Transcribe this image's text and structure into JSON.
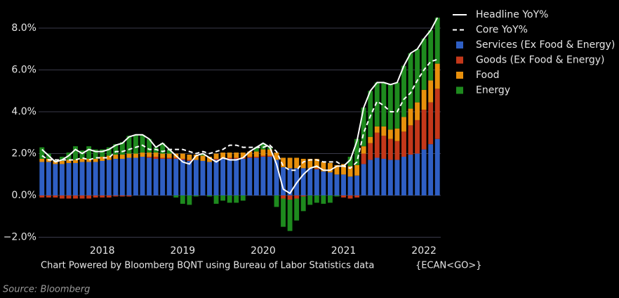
{
  "chart_data": {
    "type": "bar",
    "footer": "Chart Powered by Bloomberg BQNT using Bureau of Labor Statistics data",
    "footer_code": "{ECAN<GO>}",
    "source": "Source: Bloomberg",
    "categories": [
      null,
      null,
      null,
      null,
      null,
      null,
      null,
      null,
      null,
      "2018",
      null,
      null,
      null,
      null,
      null,
      null,
      null,
      null,
      null,
      null,
      null,
      "2019",
      null,
      null,
      null,
      null,
      null,
      null,
      null,
      null,
      null,
      null,
      null,
      "2020",
      null,
      null,
      null,
      null,
      null,
      null,
      null,
      null,
      null,
      null,
      null,
      "2021",
      null,
      null,
      null,
      null,
      null,
      null,
      null,
      null,
      null,
      null,
      null,
      "2022",
      null,
      null
    ],
    "ylim": [
      -2.25,
      9.0
    ],
    "yticks": [
      {
        "value": -2,
        "label": "−2.0%"
      },
      {
        "value": 0,
        "label": "0.0%"
      },
      {
        "value": 2,
        "label": "2.0%"
      },
      {
        "value": 4,
        "label": "4.0%"
      },
      {
        "value": 6,
        "label": "6.0%"
      },
      {
        "value": 8,
        "label": "8.0%"
      }
    ],
    "grid": true,
    "legend": "right",
    "series": [
      {
        "name": "Headline YoY%",
        "type": "line",
        "dashed": false,
        "color": "#ffffff",
        "values": [
          2.2,
          1.9,
          1.6,
          1.7,
          1.9,
          2.2,
          2.0,
          2.2,
          2.1,
          2.1,
          2.2,
          2.4,
          2.5,
          2.8,
          2.9,
          2.9,
          2.7,
          2.3,
          2.5,
          2.2,
          1.9,
          1.6,
          1.5,
          1.9,
          2.0,
          1.8,
          1.6,
          1.8,
          1.7,
          1.7,
          1.8,
          2.1,
          2.3,
          2.5,
          2.3,
          1.5,
          0.3,
          0.1,
          0.6,
          1.0,
          1.3,
          1.4,
          1.2,
          1.2,
          1.4,
          1.4,
          1.7,
          2.6,
          4.2,
          5.0,
          5.4,
          5.4,
          5.3,
          5.4,
          6.2,
          6.8,
          7.0,
          7.5,
          7.9,
          8.5
        ]
      },
      {
        "name": "Core YoY%",
        "type": "line",
        "dashed": true,
        "color": "#ffffff",
        "values": [
          1.9,
          1.7,
          1.7,
          1.7,
          1.7,
          1.7,
          1.8,
          1.7,
          1.8,
          1.8,
          1.8,
          2.1,
          2.1,
          2.2,
          2.3,
          2.4,
          2.2,
          2.2,
          2.1,
          2.2,
          2.2,
          2.2,
          2.1,
          2.0,
          2.1,
          2.0,
          2.1,
          2.2,
          2.4,
          2.4,
          2.3,
          2.3,
          2.3,
          2.3,
          2.4,
          2.1,
          1.4,
          1.2,
          1.2,
          1.6,
          1.7,
          1.7,
          1.6,
          1.6,
          1.6,
          1.4,
          1.3,
          1.6,
          3.0,
          3.8,
          4.5,
          4.3,
          4.0,
          4.0,
          4.6,
          4.9,
          5.5,
          6.0,
          6.4,
          6.5
        ]
      },
      {
        "name": "Services (Ex Food & Energy)",
        "type": "bar",
        "color": "#2f5fc4",
        "values": [
          1.6,
          1.6,
          1.5,
          1.5,
          1.55,
          1.55,
          1.6,
          1.6,
          1.6,
          1.65,
          1.7,
          1.75,
          1.75,
          1.8,
          1.8,
          1.85,
          1.8,
          1.75,
          1.75,
          1.75,
          1.75,
          1.7,
          1.65,
          1.7,
          1.65,
          1.6,
          1.7,
          1.75,
          1.75,
          1.75,
          1.75,
          1.8,
          1.8,
          1.85,
          1.85,
          1.7,
          1.35,
          1.3,
          1.3,
          1.3,
          1.3,
          1.25,
          1.15,
          1.1,
          1.0,
          1.0,
          0.9,
          0.95,
          1.5,
          1.7,
          1.8,
          1.75,
          1.7,
          1.7,
          1.85,
          1.95,
          2.0,
          2.2,
          2.45,
          2.7
        ]
      },
      {
        "name": "Goods (Ex Food & Energy)",
        "type": "bar",
        "color": "#c4381a",
        "values": [
          -0.1,
          -0.1,
          -0.1,
          -0.15,
          -0.15,
          -0.15,
          -0.15,
          -0.15,
          -0.1,
          -0.1,
          -0.1,
          -0.05,
          -0.05,
          -0.05,
          0.0,
          0.0,
          0.05,
          0.1,
          0.05,
          0.05,
          0.05,
          0.05,
          0.05,
          0.0,
          0.0,
          0.0,
          0.05,
          0.05,
          0.05,
          0.05,
          0.05,
          0.05,
          0.05,
          0.05,
          0.05,
          0.0,
          -0.15,
          -0.2,
          -0.15,
          -0.05,
          0.0,
          0.05,
          0.0,
          0.0,
          0.0,
          -0.1,
          -0.15,
          -0.1,
          0.5,
          0.8,
          1.2,
          1.1,
          1.0,
          0.9,
          1.2,
          1.4,
          1.6,
          1.9,
          2.0,
          2.4
        ]
      },
      {
        "name": "Food",
        "type": "bar",
        "color": "#e8900c",
        "values": [
          0.15,
          0.15,
          0.15,
          0.15,
          0.15,
          0.15,
          0.15,
          0.15,
          0.15,
          0.2,
          0.2,
          0.2,
          0.2,
          0.2,
          0.2,
          0.2,
          0.2,
          0.2,
          0.2,
          0.2,
          0.2,
          0.25,
          0.25,
          0.25,
          0.25,
          0.25,
          0.25,
          0.25,
          0.25,
          0.25,
          0.25,
          0.25,
          0.25,
          0.3,
          0.3,
          0.35,
          0.45,
          0.5,
          0.5,
          0.45,
          0.45,
          0.45,
          0.45,
          0.45,
          0.45,
          0.5,
          0.5,
          0.5,
          0.35,
          0.3,
          0.3,
          0.45,
          0.45,
          0.6,
          0.7,
          0.8,
          0.85,
          0.95,
          1.05,
          1.2
        ]
      },
      {
        "name": "Energy",
        "type": "bar",
        "color": "#1e8a1e",
        "values": [
          0.55,
          0.25,
          0.05,
          0.2,
          0.35,
          0.65,
          0.4,
          0.6,
          0.45,
          0.35,
          0.4,
          0.5,
          0.6,
          0.85,
          0.9,
          0.85,
          0.65,
          0.25,
          0.5,
          0.2,
          -0.1,
          -0.4,
          -0.45,
          -0.05,
          0.1,
          -0.05,
          -0.4,
          -0.25,
          -0.35,
          -0.35,
          -0.25,
          0.0,
          0.2,
          0.3,
          0.1,
          -0.55,
          -1.35,
          -1.5,
          -1.05,
          -0.7,
          -0.45,
          -0.35,
          -0.4,
          -0.35,
          -0.05,
          0.0,
          0.45,
          1.25,
          1.85,
          2.2,
          2.1,
          2.1,
          2.15,
          2.2,
          2.45,
          2.65,
          2.55,
          2.45,
          2.4,
          2.2
        ]
      }
    ]
  }
}
